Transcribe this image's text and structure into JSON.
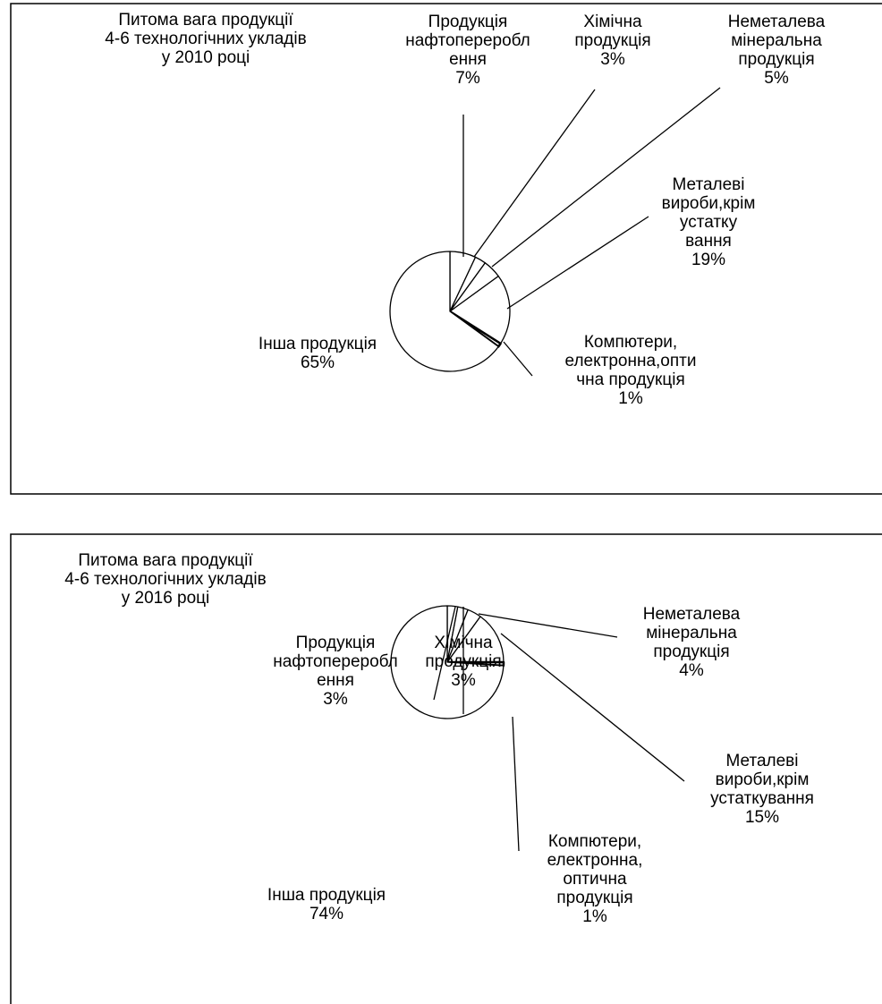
{
  "chart_data": [
    {
      "type": "pie",
      "title": [
        "Питома вага продукції",
        "4-6 технологічних укладів",
        "у 2010 році"
      ],
      "series": [
        {
          "name": "Продукція нафтопереробл ення",
          "label": [
            "Продукція",
            "нафтопереробл",
            "ення"
          ],
          "value": 7,
          "value_label": "7%"
        },
        {
          "name": "Хімічна продукція",
          "label": [
            "Хімічна",
            "продукція"
          ],
          "value": 3,
          "value_label": "3%"
        },
        {
          "name": "Неметалева мінеральна продукція",
          "label": [
            "Неметалева",
            "мінеральна",
            "продукція"
          ],
          "value": 5,
          "value_label": "5%"
        },
        {
          "name": "Металеві вироби,крім устатку вання",
          "label": [
            "Металеві",
            "вироби,крім",
            "устатку",
            "вання"
          ],
          "value": 19,
          "value_label": "19%"
        },
        {
          "name": "Компютери, електронна,опти чна продукція",
          "label": [
            "Компютери,",
            "електронна,опти",
            "чна продукція"
          ],
          "value": 1,
          "value_label": "1%"
        },
        {
          "name": "Інша продукція",
          "label": [
            "Інша продукція"
          ],
          "value": 65,
          "value_label": "65%"
        }
      ]
    },
    {
      "type": "pie",
      "title": [
        "Питома вага продукції",
        "4-6 технологічних укладів",
        "у 2016 році"
      ],
      "series": [
        {
          "name": "Продукція нафтопереробл ення",
          "label": [
            "Продукція",
            "нафтопереробл",
            "ення"
          ],
          "value": 3,
          "value_label": "3%"
        },
        {
          "name": "Хімічна продукція",
          "label": [
            "Хімічна",
            "продукція"
          ],
          "value": 3,
          "value_label": "3%"
        },
        {
          "name": "Неметалева мінеральна продукція",
          "label": [
            "Неметалева",
            "мінеральна",
            "продукція"
          ],
          "value": 4,
          "value_label": "4%"
        },
        {
          "name": "Металеві вироби,крім устаткування",
          "label": [
            "Металеві",
            "вироби,крім",
            "устаткування"
          ],
          "value": 15,
          "value_label": "15%"
        },
        {
          "name": "Компютери, електронна, оптична продукція",
          "label": [
            "Компютери,",
            "електронна,",
            "оптична",
            "продукція"
          ],
          "value": 1,
          "value_label": "1%"
        },
        {
          "name": "Інша продукція",
          "label": [
            "Інша продукція"
          ],
          "value": 74,
          "value_label": "74%"
        }
      ]
    }
  ]
}
